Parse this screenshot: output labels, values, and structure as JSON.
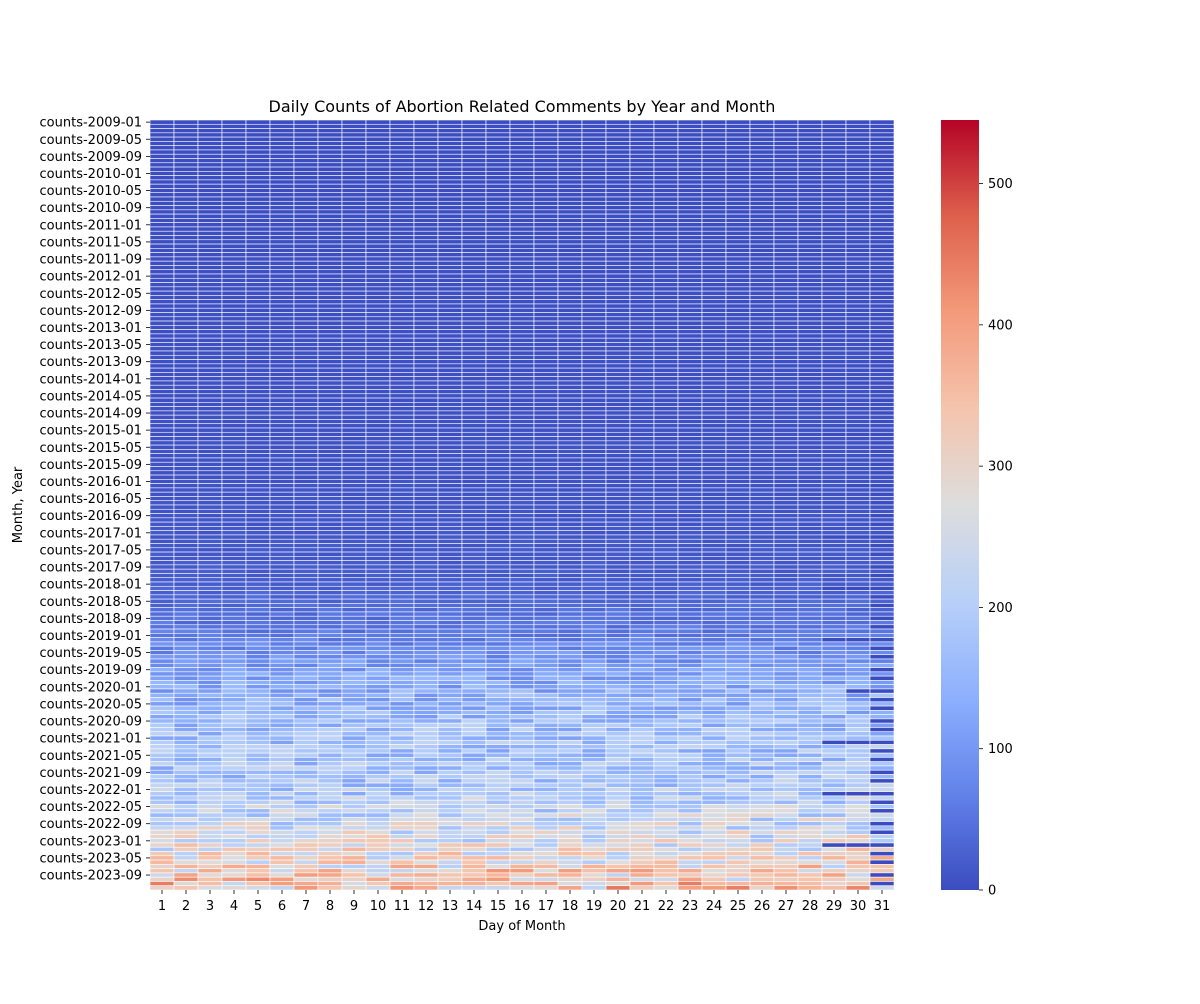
{
  "chart_data": {
    "type": "heatmap",
    "title": "Daily Counts of Abortion Related Comments by Year and Month",
    "xlabel": "Day of Month",
    "ylabel": "Month, Year",
    "x_categories": [
      "1",
      "2",
      "3",
      "4",
      "5",
      "6",
      "7",
      "8",
      "9",
      "10",
      "11",
      "12",
      "13",
      "14",
      "15",
      "16",
      "17",
      "18",
      "19",
      "20",
      "21",
      "22",
      "23",
      "24",
      "25",
      "26",
      "27",
      "28",
      "29",
      "30",
      "31"
    ],
    "y_start": "2009-01",
    "y_end": "2023-12",
    "y_row_count": 180,
    "y_row_prefix": "counts-",
    "y_tick_labels": [
      "counts-2009-01",
      "counts-2009-05",
      "counts-2009-09",
      "counts-2010-01",
      "counts-2010-05",
      "counts-2010-09",
      "counts-2011-01",
      "counts-2011-05",
      "counts-2011-09",
      "counts-2012-01",
      "counts-2012-05",
      "counts-2012-09",
      "counts-2013-01",
      "counts-2013-05",
      "counts-2013-09",
      "counts-2014-01",
      "counts-2014-05",
      "counts-2014-09",
      "counts-2015-01",
      "counts-2015-05",
      "counts-2015-09",
      "counts-2016-01",
      "counts-2016-05",
      "counts-2016-09",
      "counts-2017-01",
      "counts-2017-05",
      "counts-2017-09",
      "counts-2018-01",
      "counts-2018-05",
      "counts-2018-09",
      "counts-2019-01",
      "counts-2019-05",
      "counts-2019-09",
      "counts-2020-01",
      "counts-2020-05",
      "counts-2020-09",
      "counts-2021-01",
      "counts-2021-05",
      "counts-2021-09",
      "counts-2022-01",
      "counts-2022-05",
      "counts-2022-09",
      "counts-2023-01",
      "counts-2023-05",
      "counts-2023-09"
    ],
    "colorbar": {
      "min": 0,
      "max": 545,
      "ticks": [
        0,
        100,
        200,
        300,
        400,
        500
      ],
      "colormap": "coolwarm"
    },
    "yearly_typical_level": {
      "2009": 1,
      "2010": 2,
      "2011": 3,
      "2012": 4,
      "2013": 5,
      "2014": 6,
      "2015": 8,
      "2016": 12,
      "2017": 20,
      "2018": 55,
      "2019": 125,
      "2020": 170,
      "2021": 180,
      "2022": 250,
      "2023": 340
    },
    "grid_lines": true
  }
}
